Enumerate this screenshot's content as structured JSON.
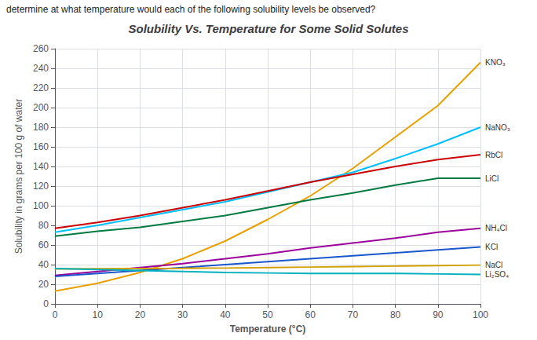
{
  "chart_data": {
    "type": "line",
    "title": "Solubility Vs. Temperature for Some Solid Solutes",
    "annotations": [
      "determine at what temperature would each of the following solubility levels be observed?"
    ],
    "xlabel": "Temperature (°C)",
    "ylabel": "Solubility in grams per 100 g of water",
    "x": [
      0,
      10,
      20,
      30,
      40,
      50,
      60,
      70,
      80,
      90,
      100
    ],
    "series": [
      {
        "name": "KNO₃",
        "color": "#e8a000",
        "values": [
          13,
          21,
          32,
          46,
          64,
          86,
          110,
          138,
          170,
          202,
          246
        ]
      },
      {
        "name": "NaNO₃",
        "color": "#00bfff",
        "values": [
          73,
          80,
          88,
          96,
          104,
          114,
          124,
          134,
          148,
          163,
          180
        ]
      },
      {
        "name": "RbCl",
        "color": "#cc0000",
        "values": [
          77,
          83,
          90,
          98,
          106,
          115,
          124,
          132,
          140,
          147,
          152
        ]
      },
      {
        "name": "LiCl",
        "color": "#007a40",
        "values": [
          69,
          74,
          78,
          84,
          90,
          98,
          106,
          113,
          121,
          128,
          128
        ]
      },
      {
        "name": "NH₄Cl",
        "color": "#9b009b",
        "values": [
          29,
          33,
          37,
          41,
          46,
          51,
          57,
          62,
          67,
          73,
          77
        ]
      },
      {
        "name": "KCl",
        "color": "#1a56cc",
        "values": [
          28,
          31,
          34,
          37,
          40,
          43,
          46,
          49,
          52,
          55,
          58
        ]
      },
      {
        "name": "NaCl",
        "color": "#d4a000",
        "values": [
          35.7,
          35.8,
          36.0,
          36.2,
          36.5,
          37.0,
          37.5,
          38.0,
          38.5,
          39.0,
          39.5
        ]
      },
      {
        "name": "Li₂SO₄",
        "color": "#00b0c0",
        "values": [
          36,
          35,
          34,
          33,
          32,
          31.5,
          31,
          31,
          31,
          30.5,
          30
        ]
      }
    ],
    "xlim": [
      0,
      100
    ],
    "ylim": [
      0,
      260
    ],
    "xticks": [
      0,
      10,
      20,
      30,
      40,
      50,
      60,
      70,
      80,
      90,
      100
    ],
    "yticks": [
      0,
      20,
      40,
      60,
      80,
      100,
      120,
      140,
      160,
      180,
      200,
      220,
      240,
      260
    ],
    "grid": true
  }
}
